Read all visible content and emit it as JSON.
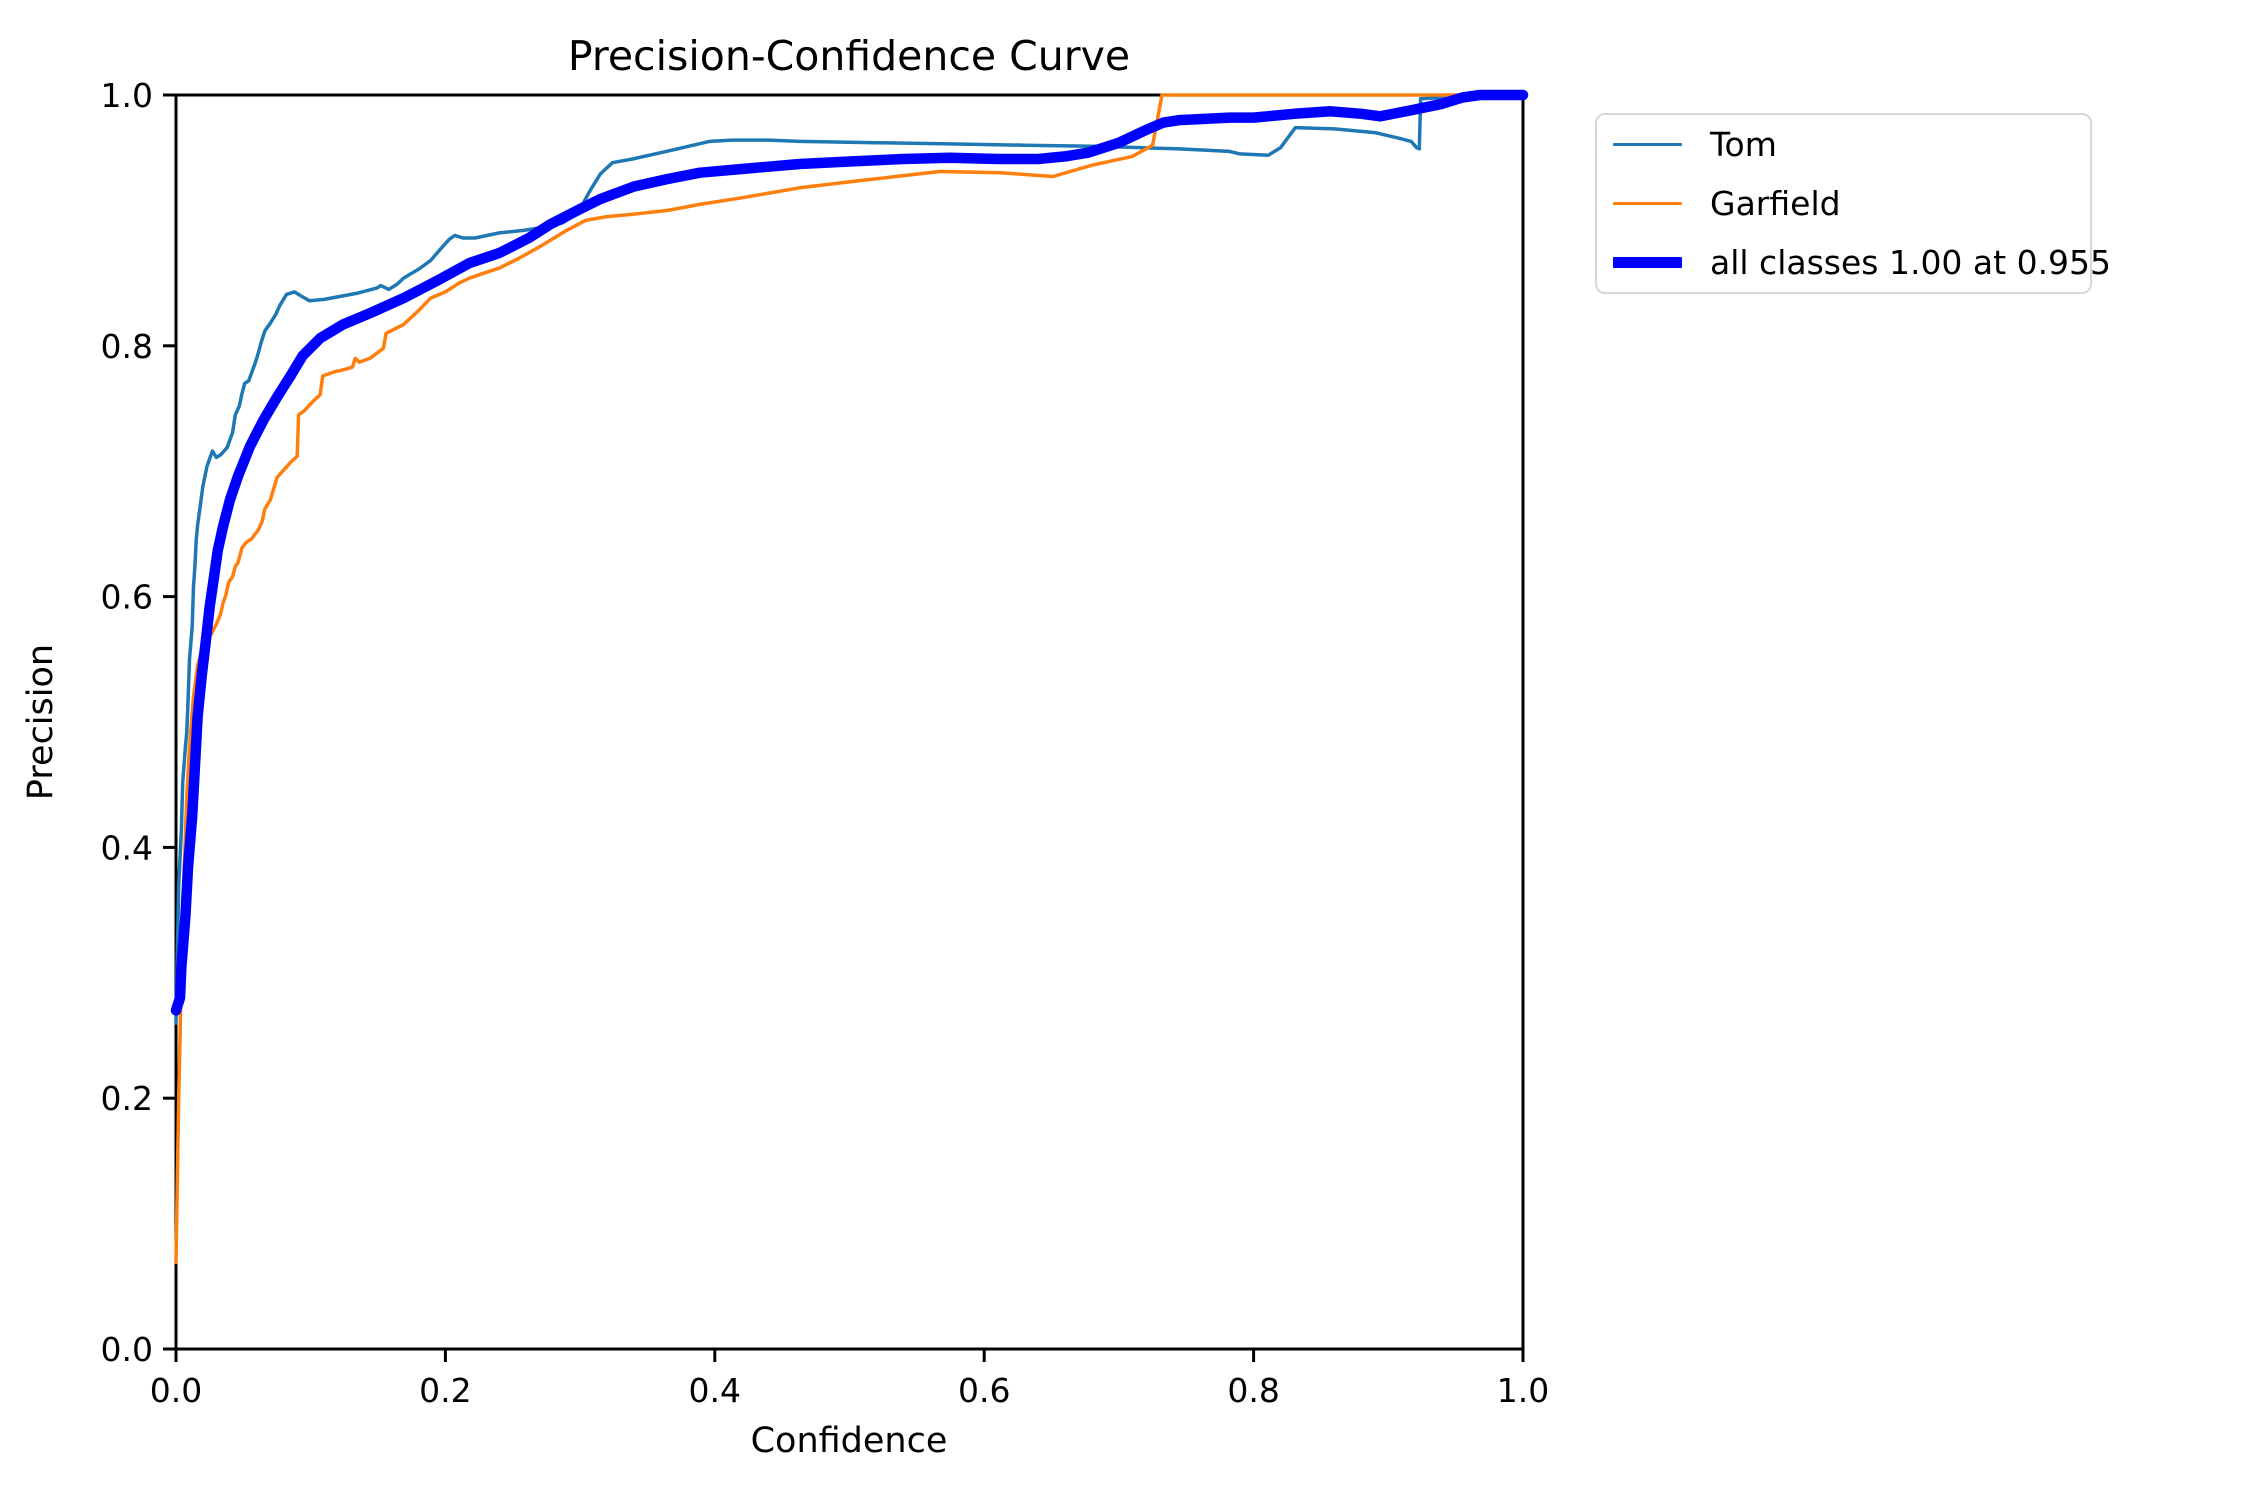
{
  "figure": {
    "title": "Precision-Confidence Curve",
    "background": "#ffffff"
  },
  "axes": {
    "xlabel": "Confidence",
    "ylabel": "Precision",
    "xtick_labels": [
      "0.0",
      "0.2",
      "0.4",
      "0.6",
      "0.8",
      "1.0"
    ],
    "ytick_labels": [
      "0.0",
      "0.2",
      "0.4",
      "0.6",
      "0.8",
      "1.0"
    ],
    "spine_color": "#000000"
  },
  "legend": {
    "items": [
      {
        "label": "Tom",
        "color": "#1f77b4",
        "thickness": 3.5
      },
      {
        "label": "Garfield",
        "color": "#ff7f0e",
        "thickness": 3.5
      },
      {
        "label": "all classes 1.00 at 0.955",
        "color": "#0000ff",
        "thickness": 10.5
      }
    ]
  },
  "chart_data": {
    "type": "line",
    "title": "Precision-Confidence Curve",
    "xlabel": "Confidence",
    "ylabel": "Precision",
    "xlim": [
      0,
      1
    ],
    "ylim": [
      0,
      1
    ],
    "xticks": [
      0.0,
      0.2,
      0.4,
      0.6,
      0.8,
      1.0
    ],
    "yticks": [
      0.0,
      0.2,
      0.4,
      0.6,
      0.8,
      1.0
    ],
    "grid": false,
    "legend_position": "outside upper right",
    "series": [
      {
        "name": "Tom",
        "color": "#1f77b4",
        "linewidth": 3.5,
        "points": [
          [
            0.0,
            0.26
          ],
          [
            0.002,
            0.37
          ],
          [
            0.004,
            0.414
          ],
          [
            0.005,
            0.452
          ],
          [
            0.007,
            0.48
          ],
          [
            0.008,
            0.492
          ],
          [
            0.009,
            0.518
          ],
          [
            0.01,
            0.55
          ],
          [
            0.012,
            0.576
          ],
          [
            0.013,
            0.608
          ],
          [
            0.014,
            0.624
          ],
          [
            0.015,
            0.645
          ],
          [
            0.016,
            0.657
          ],
          [
            0.018,
            0.672
          ],
          [
            0.02,
            0.688
          ],
          [
            0.023,
            0.704
          ],
          [
            0.025,
            0.71
          ],
          [
            0.027,
            0.716
          ],
          [
            0.03,
            0.711
          ],
          [
            0.033,
            0.713
          ],
          [
            0.038,
            0.719
          ],
          [
            0.042,
            0.731
          ],
          [
            0.044,
            0.745
          ],
          [
            0.047,
            0.752
          ],
          [
            0.049,
            0.762
          ],
          [
            0.051,
            0.77
          ],
          [
            0.054,
            0.772
          ],
          [
            0.056,
            0.778
          ],
          [
            0.059,
            0.787
          ],
          [
            0.061,
            0.794
          ],
          [
            0.063,
            0.802
          ],
          [
            0.066,
            0.812
          ],
          [
            0.07,
            0.818
          ],
          [
            0.074,
            0.825
          ],
          [
            0.077,
            0.832
          ],
          [
            0.082,
            0.841
          ],
          [
            0.088,
            0.843
          ],
          [
            0.094,
            0.839
          ],
          [
            0.099,
            0.836
          ],
          [
            0.11,
            0.837
          ],
          [
            0.12,
            0.839
          ],
          [
            0.135,
            0.842
          ],
          [
            0.149,
            0.846
          ],
          [
            0.152,
            0.848
          ],
          [
            0.158,
            0.845
          ],
          [
            0.164,
            0.849
          ],
          [
            0.169,
            0.854
          ],
          [
            0.18,
            0.861
          ],
          [
            0.189,
            0.868
          ],
          [
            0.197,
            0.878
          ],
          [
            0.203,
            0.885
          ],
          [
            0.207,
            0.888
          ],
          [
            0.213,
            0.886
          ],
          [
            0.222,
            0.886
          ],
          [
            0.24,
            0.89
          ],
          [
            0.258,
            0.892
          ],
          [
            0.27,
            0.894
          ],
          [
            0.287,
            0.898
          ],
          [
            0.296,
            0.904
          ],
          [
            0.301,
            0.911
          ],
          [
            0.307,
            0.923
          ],
          [
            0.315,
            0.937
          ],
          [
            0.324,
            0.946
          ],
          [
            0.339,
            0.949
          ],
          [
            0.364,
            0.955
          ],
          [
            0.38,
            0.959
          ],
          [
            0.396,
            0.963
          ],
          [
            0.413,
            0.964
          ],
          [
            0.44,
            0.964
          ],
          [
            0.463,
            0.963
          ],
          [
            0.52,
            0.962
          ],
          [
            0.574,
            0.961
          ],
          [
            0.63,
            0.96
          ],
          [
            0.686,
            0.959
          ],
          [
            0.745,
            0.957
          ],
          [
            0.782,
            0.955
          ],
          [
            0.79,
            0.953
          ],
          [
            0.811,
            0.952
          ],
          [
            0.82,
            0.958
          ],
          [
            0.831,
            0.974
          ],
          [
            0.86,
            0.973
          ],
          [
            0.89,
            0.97
          ],
          [
            0.91,
            0.965
          ],
          [
            0.917,
            0.963
          ],
          [
            0.921,
            0.958
          ],
          [
            0.923,
            0.957
          ],
          [
            0.924,
            0.997
          ],
          [
            0.94,
            0.998
          ],
          [
            0.955,
            1.0
          ],
          [
            1.0,
            1.0
          ]
        ]
      },
      {
        "name": "Garfield",
        "color": "#ff7f0e",
        "linewidth": 3.5,
        "points": [
          [
            0.0,
            0.069
          ],
          [
            0.002,
            0.2
          ],
          [
            0.004,
            0.3
          ],
          [
            0.006,
            0.38
          ],
          [
            0.008,
            0.44
          ],
          [
            0.01,
            0.48
          ],
          [
            0.013,
            0.52
          ],
          [
            0.016,
            0.545
          ],
          [
            0.02,
            0.56
          ],
          [
            0.025,
            0.568
          ],
          [
            0.03,
            0.578
          ],
          [
            0.033,
            0.586
          ],
          [
            0.035,
            0.595
          ],
          [
            0.037,
            0.601
          ],
          [
            0.039,
            0.611
          ],
          [
            0.042,
            0.616
          ],
          [
            0.044,
            0.624
          ],
          [
            0.046,
            0.627
          ],
          [
            0.049,
            0.639
          ],
          [
            0.052,
            0.643
          ],
          [
            0.056,
            0.646
          ],
          [
            0.061,
            0.653
          ],
          [
            0.064,
            0.66
          ],
          [
            0.066,
            0.67
          ],
          [
            0.07,
            0.677
          ],
          [
            0.075,
            0.695
          ],
          [
            0.08,
            0.701
          ],
          [
            0.085,
            0.707
          ],
          [
            0.09,
            0.712
          ],
          [
            0.091,
            0.745
          ],
          [
            0.095,
            0.748
          ],
          [
            0.102,
            0.756
          ],
          [
            0.107,
            0.761
          ],
          [
            0.109,
            0.776
          ],
          [
            0.117,
            0.779
          ],
          [
            0.125,
            0.781
          ],
          [
            0.131,
            0.783
          ],
          [
            0.133,
            0.79
          ],
          [
            0.136,
            0.787
          ],
          [
            0.144,
            0.79
          ],
          [
            0.154,
            0.798
          ],
          [
            0.156,
            0.81
          ],
          [
            0.169,
            0.817
          ],
          [
            0.18,
            0.828
          ],
          [
            0.189,
            0.838
          ],
          [
            0.2,
            0.843
          ],
          [
            0.21,
            0.85
          ],
          [
            0.218,
            0.854
          ],
          [
            0.226,
            0.857
          ],
          [
            0.24,
            0.862
          ],
          [
            0.255,
            0.87
          ],
          [
            0.27,
            0.879
          ],
          [
            0.29,
            0.892
          ],
          [
            0.304,
            0.9
          ],
          [
            0.32,
            0.903
          ],
          [
            0.34,
            0.905
          ],
          [
            0.365,
            0.908
          ],
          [
            0.39,
            0.913
          ],
          [
            0.42,
            0.918
          ],
          [
            0.463,
            0.926
          ],
          [
            0.51,
            0.932
          ],
          [
            0.567,
            0.939
          ],
          [
            0.612,
            0.938
          ],
          [
            0.651,
            0.935
          ],
          [
            0.68,
            0.944
          ],
          [
            0.71,
            0.951
          ],
          [
            0.725,
            0.96
          ],
          [
            0.728,
            0.977
          ],
          [
            0.732,
            1.0
          ],
          [
            1.0,
            1.0
          ]
        ]
      },
      {
        "name": "all classes 1.00 at 0.955",
        "color": "#0000ff",
        "linewidth": 10.5,
        "points": [
          [
            0.0,
            0.27
          ],
          [
            0.003,
            0.28
          ],
          [
            0.004,
            0.305
          ],
          [
            0.007,
            0.345
          ],
          [
            0.009,
            0.385
          ],
          [
            0.012,
            0.425
          ],
          [
            0.014,
            0.464
          ],
          [
            0.016,
            0.504
          ],
          [
            0.019,
            0.536
          ],
          [
            0.022,
            0.563
          ],
          [
            0.025,
            0.592
          ],
          [
            0.028,
            0.614
          ],
          [
            0.031,
            0.637
          ],
          [
            0.035,
            0.656
          ],
          [
            0.04,
            0.677
          ],
          [
            0.046,
            0.696
          ],
          [
            0.055,
            0.72
          ],
          [
            0.065,
            0.741
          ],
          [
            0.075,
            0.759
          ],
          [
            0.085,
            0.776
          ],
          [
            0.094,
            0.792
          ],
          [
            0.107,
            0.806
          ],
          [
            0.124,
            0.817
          ],
          [
            0.144,
            0.826
          ],
          [
            0.169,
            0.838
          ],
          [
            0.194,
            0.852
          ],
          [
            0.218,
            0.866
          ],
          [
            0.24,
            0.874
          ],
          [
            0.262,
            0.886
          ],
          [
            0.278,
            0.897
          ],
          [
            0.3,
            0.909
          ],
          [
            0.315,
            0.917
          ],
          [
            0.34,
            0.927
          ],
          [
            0.365,
            0.933
          ],
          [
            0.389,
            0.938
          ],
          [
            0.42,
            0.941
          ],
          [
            0.463,
            0.945
          ],
          [
            0.5,
            0.947
          ],
          [
            0.54,
            0.949
          ],
          [
            0.574,
            0.95
          ],
          [
            0.61,
            0.949
          ],
          [
            0.64,
            0.949
          ],
          [
            0.66,
            0.951
          ],
          [
            0.677,
            0.954
          ],
          [
            0.7,
            0.962
          ],
          [
            0.72,
            0.972
          ],
          [
            0.733,
            0.978
          ],
          [
            0.745,
            0.98
          ],
          [
            0.782,
            0.982
          ],
          [
            0.8,
            0.982
          ],
          [
            0.83,
            0.985
          ],
          [
            0.857,
            0.987
          ],
          [
            0.88,
            0.985
          ],
          [
            0.894,
            0.983
          ],
          [
            0.918,
            0.988
          ],
          [
            0.94,
            0.993
          ],
          [
            0.955,
            0.998
          ],
          [
            0.968,
            1.0
          ],
          [
            1.0,
            1.0
          ]
        ]
      }
    ]
  }
}
